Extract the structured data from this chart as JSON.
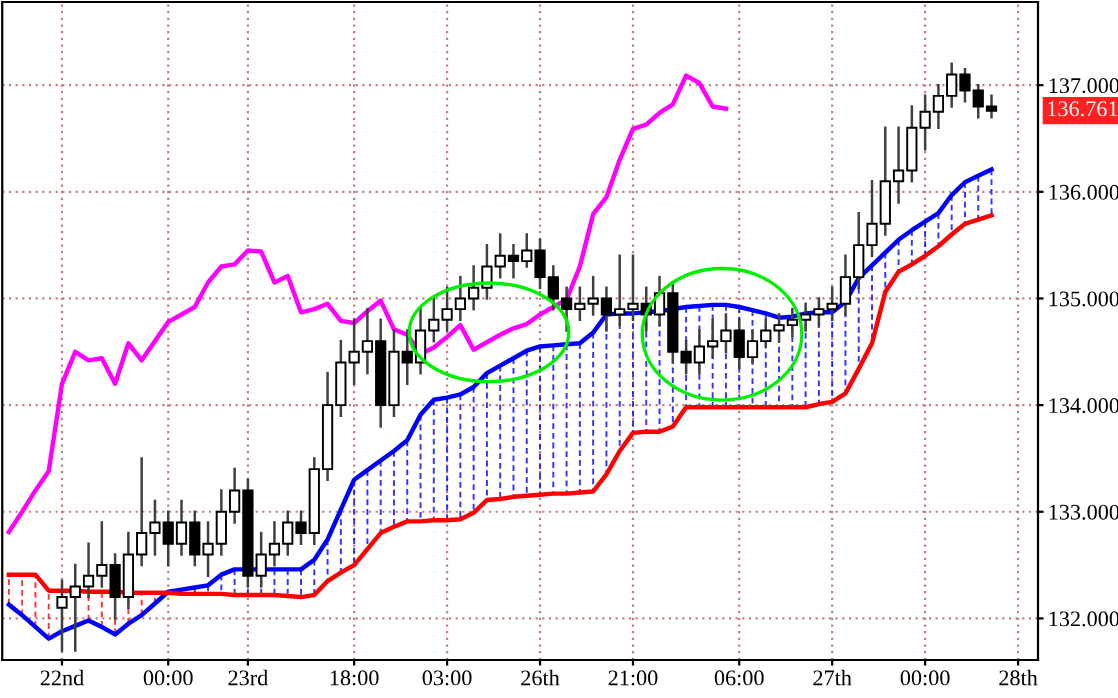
{
  "chart_data": {
    "type": "candlestick",
    "categories": [
      null,
      null,
      null,
      null,
      "22nd",
      null,
      null,
      null,
      null,
      null,
      null,
      null,
      "00:00",
      null,
      null,
      null,
      null,
      null,
      "23rd",
      null,
      null,
      null,
      null,
      null,
      null,
      null,
      "18:00",
      null,
      null,
      null,
      null,
      null,
      null,
      "03:00",
      null,
      null,
      null,
      null,
      null,
      null,
      "26th",
      null,
      null,
      null,
      null,
      null,
      null,
      "21:00",
      null,
      null,
      null,
      null,
      null,
      null,
      null,
      "06:00",
      null,
      null,
      null,
      null,
      null,
      null,
      "27th",
      null,
      null,
      null,
      null,
      null,
      null,
      "00:00",
      null,
      null,
      null,
      null,
      null,
      null,
      "28th",
      null
    ],
    "ohlc": [
      null,
      null,
      null,
      null,
      [
        132.1,
        132.35,
        131.7,
        132.2
      ],
      [
        132.2,
        132.5,
        131.7,
        132.3
      ],
      [
        132.3,
        132.7,
        132.2,
        132.4
      ],
      [
        132.4,
        132.9,
        132.3,
        132.5
      ],
      [
        132.5,
        132.6,
        132.0,
        132.2
      ],
      [
        132.2,
        132.8,
        132.1,
        132.6
      ],
      [
        132.6,
        133.5,
        132.5,
        132.8
      ],
      [
        132.8,
        133.1,
        132.6,
        132.9
      ],
      [
        132.9,
        133.0,
        132.5,
        132.7
      ],
      [
        132.7,
        133.1,
        132.6,
        132.9
      ],
      [
        132.9,
        133.0,
        132.5,
        132.6
      ],
      [
        132.6,
        132.9,
        132.4,
        132.7
      ],
      [
        132.7,
        133.2,
        132.6,
        133.0
      ],
      [
        133.0,
        133.4,
        132.9,
        133.2
      ],
      [
        133.2,
        133.3,
        132.3,
        132.4
      ],
      [
        132.4,
        132.8,
        132.3,
        132.6
      ],
      [
        132.6,
        132.9,
        132.5,
        132.7
      ],
      [
        132.7,
        133.0,
        132.6,
        132.9
      ],
      [
        132.9,
        133.0,
        132.7,
        132.8
      ],
      [
        132.8,
        133.5,
        132.7,
        133.4
      ],
      [
        133.4,
        134.3,
        133.3,
        134.0
      ],
      [
        134.0,
        134.6,
        133.9,
        134.4
      ],
      [
        134.4,
        134.8,
        134.2,
        134.5
      ],
      [
        134.5,
        134.9,
        134.3,
        134.6
      ],
      [
        134.6,
        134.8,
        133.8,
        134.0
      ],
      [
        134.0,
        134.7,
        133.9,
        134.5
      ],
      [
        134.5,
        134.7,
        134.2,
        134.4
      ],
      [
        134.4,
        134.9,
        134.3,
        134.7
      ],
      [
        134.7,
        135.0,
        134.6,
        134.8
      ],
      [
        134.8,
        135.1,
        134.7,
        134.9
      ],
      [
        134.9,
        135.2,
        134.8,
        135.0
      ],
      [
        135.0,
        135.3,
        134.9,
        135.1
      ],
      [
        135.1,
        135.5,
        135.0,
        135.3
      ],
      [
        135.3,
        135.6,
        135.2,
        135.4
      ],
      [
        135.4,
        135.5,
        135.2,
        135.35
      ],
      [
        135.35,
        135.6,
        135.3,
        135.45
      ],
      [
        135.45,
        135.55,
        135.1,
        135.2
      ],
      [
        135.2,
        135.3,
        134.9,
        135.0
      ],
      [
        135.0,
        135.1,
        134.7,
        134.9
      ],
      [
        134.9,
        135.1,
        134.8,
        134.95
      ],
      [
        134.95,
        135.2,
        134.85,
        135.0
      ],
      [
        135.0,
        135.1,
        134.7,
        134.85
      ],
      [
        134.85,
        135.4,
        134.75,
        134.9
      ],
      [
        134.9,
        135.4,
        134.8,
        134.95
      ],
      [
        134.95,
        135.1,
        134.7,
        134.85
      ],
      [
        134.85,
        135.2,
        134.75,
        135.05
      ],
      [
        135.05,
        135.15,
        134.4,
        134.5
      ],
      [
        134.5,
        134.6,
        134.3,
        134.4
      ],
      [
        134.4,
        134.7,
        134.3,
        134.55
      ],
      [
        134.55,
        134.8,
        134.45,
        134.6
      ],
      [
        134.6,
        134.85,
        134.5,
        134.7
      ],
      [
        134.7,
        134.8,
        134.35,
        134.45
      ],
      [
        134.45,
        134.7,
        134.4,
        134.6
      ],
      [
        134.6,
        134.8,
        134.55,
        134.7
      ],
      [
        134.7,
        134.85,
        134.6,
        134.75
      ],
      [
        134.75,
        134.9,
        134.65,
        134.8
      ],
      [
        134.8,
        134.95,
        134.7,
        134.85
      ],
      [
        134.85,
        135.0,
        134.75,
        134.9
      ],
      [
        134.9,
        135.1,
        134.8,
        134.95
      ],
      [
        134.95,
        135.4,
        134.85,
        135.2
      ],
      [
        135.2,
        135.8,
        135.1,
        135.5
      ],
      [
        135.5,
        136.1,
        135.4,
        135.7
      ],
      [
        135.7,
        136.6,
        135.6,
        136.1
      ],
      [
        136.1,
        136.6,
        135.9,
        136.2
      ],
      [
        136.2,
        136.8,
        136.1,
        136.6
      ],
      [
        136.6,
        136.9,
        136.4,
        136.75
      ],
      [
        136.75,
        137.0,
        136.6,
        136.9
      ],
      [
        136.9,
        137.2,
        136.8,
        137.1
      ],
      [
        137.1,
        137.15,
        136.85,
        136.95
      ],
      [
        136.95,
        137.0,
        136.7,
        136.8
      ],
      [
        136.8,
        136.9,
        136.7,
        136.761
      ],
      null,
      null,
      null
    ],
    "series": [
      {
        "type": "line",
        "color": "#0000ff",
        "values": [
          132.13,
          132.03,
          131.92,
          131.81,
          131.88,
          131.93,
          131.98,
          131.92,
          131.85,
          131.95,
          132.03,
          132.14,
          132.25,
          132.27,
          132.29,
          132.31,
          132.41,
          132.46,
          132.46,
          132.46,
          132.46,
          132.46,
          132.46,
          132.55,
          132.74,
          133.02,
          133.3,
          133.39,
          133.48,
          133.57,
          133.67,
          133.91,
          134.05,
          134.07,
          134.1,
          134.17,
          134.3,
          134.37,
          134.44,
          134.51,
          134.55,
          134.56,
          134.57,
          134.58,
          134.68,
          134.85,
          134.86,
          134.86,
          134.87,
          134.88,
          134.9,
          134.92,
          134.93,
          134.94,
          134.94,
          134.92,
          134.89,
          134.86,
          134.82,
          134.83,
          134.86,
          134.87,
          134.87,
          134.97,
          135.19,
          135.31,
          135.43,
          135.55,
          135.64,
          135.72,
          135.8,
          135.97,
          136.09,
          136.15,
          136.21,
          null,
          null,
          null
        ]
      },
      {
        "type": "line",
        "color": "#ff0000",
        "values": [
          132.41,
          132.41,
          132.41,
          132.26,
          132.26,
          132.26,
          132.25,
          132.25,
          132.25,
          132.24,
          132.24,
          132.24,
          132.24,
          132.23,
          132.23,
          132.23,
          132.23,
          132.22,
          132.22,
          132.22,
          132.22,
          132.21,
          132.2,
          132.22,
          132.35,
          132.43,
          132.5,
          132.65,
          132.8,
          132.86,
          132.91,
          132.91,
          132.92,
          132.92,
          132.93,
          132.99,
          133.11,
          133.12,
          133.14,
          133.15,
          133.16,
          133.17,
          133.17,
          133.18,
          133.19,
          133.35,
          133.57,
          133.74,
          133.75,
          133.75,
          133.8,
          133.98,
          133.98,
          133.98,
          133.98,
          133.98,
          133.98,
          133.98,
          133.98,
          133.98,
          133.98,
          134.01,
          134.03,
          134.11,
          134.34,
          134.58,
          135.06,
          135.25,
          135.32,
          135.4,
          135.49,
          135.6,
          135.7,
          135.74,
          135.78,
          null,
          null,
          null
        ]
      },
      {
        "type": "line",
        "color": "#ff00ff",
        "values": [
          132.81,
          133.0,
          133.2,
          133.38,
          134.2,
          134.5,
          134.42,
          134.44,
          134.2,
          134.58,
          134.42,
          134.6,
          134.78,
          134.85,
          134.92,
          135.15,
          135.3,
          135.32,
          135.45,
          135.44,
          135.15,
          135.21,
          134.87,
          134.9,
          134.95,
          134.79,
          134.77,
          134.88,
          134.98,
          134.71,
          134.66,
          134.48,
          134.54,
          134.64,
          134.75,
          134.52,
          134.59,
          134.66,
          134.72,
          134.76,
          134.85,
          134.92,
          134.99,
          135.3,
          135.79,
          135.95,
          136.3,
          136.59,
          136.63,
          136.74,
          136.82,
          137.09,
          137.02,
          136.8,
          136.78,
          null,
          null,
          null,
          null,
          null,
          null,
          null,
          null,
          null,
          null,
          null,
          null,
          null,
          null,
          null,
          null,
          null,
          null,
          null,
          null,
          null,
          null,
          null
        ]
      }
    ],
    "ylim": [
      131.61,
      137.78
    ],
    "yticks": [
      {
        "value": 132,
        "label": "132.000"
      },
      {
        "value": 133,
        "label": "133.000"
      },
      {
        "value": 134,
        "label": "134.000"
      },
      {
        "value": 135,
        "label": "135.000"
      },
      {
        "value": 136,
        "label": "136.000"
      },
      {
        "value": 137,
        "label": "137.000"
      }
    ],
    "grid": true,
    "annotations": [
      "136.761"
    ]
  }
}
